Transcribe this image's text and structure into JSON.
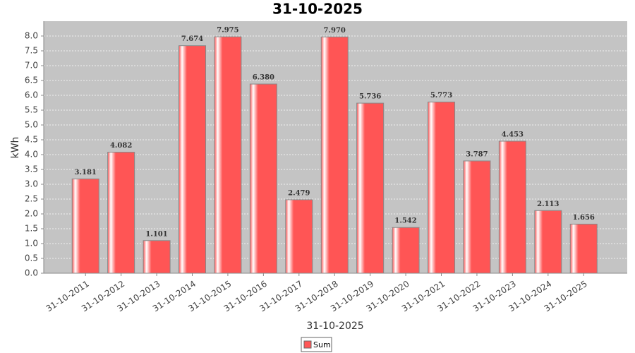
{
  "chart_data": {
    "type": "bar",
    "title": "31-10-2025",
    "x_label": "31-10-2025",
    "y_label": "kWh",
    "categories": [
      "31-10-2011",
      "31-10-2012",
      "31-10-2013",
      "31-10-2014",
      "31-10-2015",
      "31-10-2016",
      "31-10-2017",
      "31-10-2018",
      "31-10-2019",
      "31-10-2020",
      "31-10-2021",
      "31-10-2022",
      "31-10-2023",
      "31-10-2024",
      "31-10-2025"
    ],
    "series": [
      {
        "name": "Sum",
        "color": "#ff5555",
        "values": [
          3.181,
          4.082,
          1.101,
          7.674,
          7.975,
          6.38,
          2.479,
          7.97,
          5.736,
          1.542,
          5.773,
          3.787,
          4.453,
          2.113,
          1.656
        ],
        "value_labels": [
          "3.181",
          "4.082",
          "1.101",
          "7.674",
          "7.975",
          "6.380",
          "2.479",
          "7.970",
          "5.736",
          "1.542",
          "5.773",
          "3.787",
          "4.453",
          "2.113",
          "1.656"
        ]
      }
    ],
    "ylim": [
      0,
      8.5
    ],
    "yticks": [
      {
        "value": 0,
        "label": "0.0"
      },
      0.5,
      {
        "value": 1,
        "label": "1.0"
      },
      1.5,
      {
        "value": 2,
        "label": "2.0"
      },
      2.5,
      {
        "value": 3,
        "label": "3.0"
      },
      3.5,
      {
        "value": 4,
        "label": "4.0"
      },
      4.5,
      {
        "value": 5,
        "label": "5.0"
      },
      5.5,
      {
        "value": 6,
        "label": "6.0"
      },
      6.5,
      {
        "value": 7,
        "label": "7.0"
      },
      7.5,
      {
        "value": 8,
        "label": "8.0"
      }
    ],
    "grid": true
  }
}
